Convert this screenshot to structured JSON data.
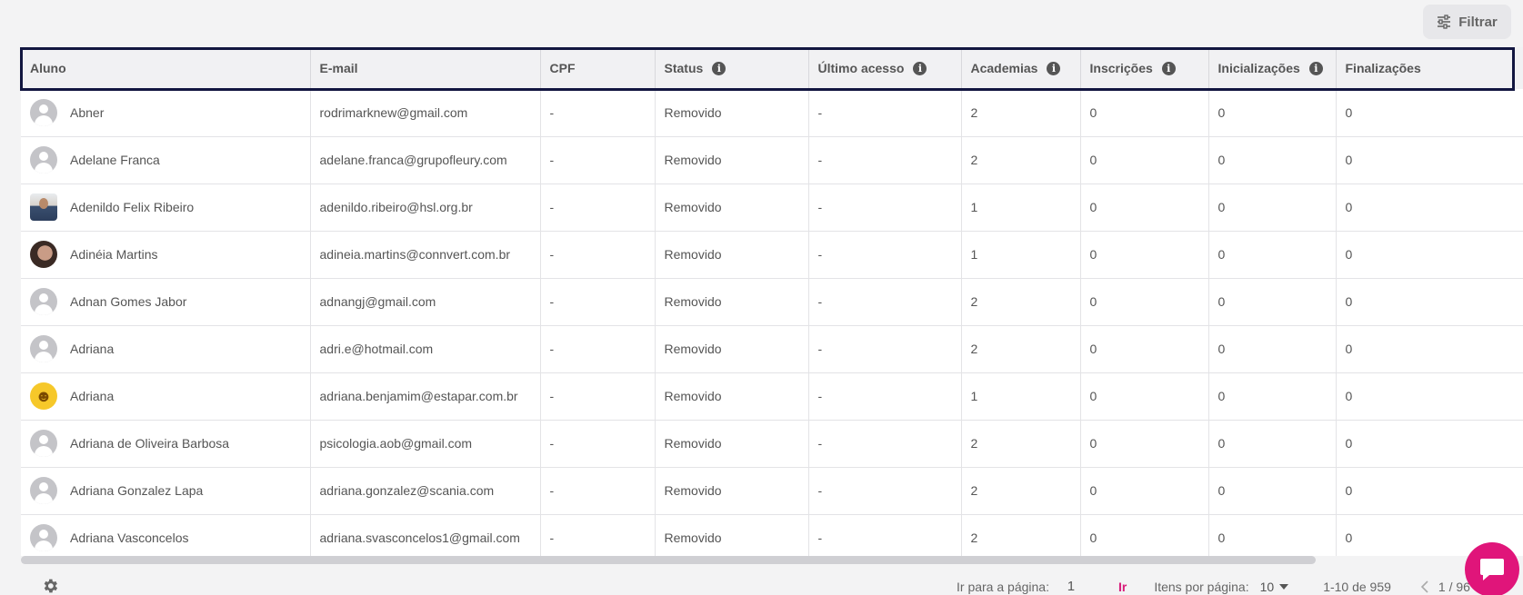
{
  "filter": {
    "label": "Filtrar",
    "icon": "sliders-icon"
  },
  "table": {
    "columns": [
      {
        "key": "aluno",
        "label": "Aluno",
        "info": false
      },
      {
        "key": "email",
        "label": "E-mail",
        "info": false
      },
      {
        "key": "cpf",
        "label": "CPF",
        "info": false
      },
      {
        "key": "status",
        "label": "Status",
        "info": true
      },
      {
        "key": "ultimo_acesso",
        "label": "Último acesso",
        "info": true
      },
      {
        "key": "academias",
        "label": "Academias",
        "info": true
      },
      {
        "key": "inscricoes",
        "label": "Inscrições",
        "info": true
      },
      {
        "key": "inicializacoes",
        "label": "Inicializações",
        "info": true
      },
      {
        "key": "finalizacoes",
        "label": "Finalizações",
        "info": false
      }
    ],
    "rows": [
      {
        "avatar": "default",
        "aluno": "Abner",
        "email": "rodrimarknew@gmail.com",
        "cpf": "-",
        "status": "Removido",
        "ultimo_acesso": "-",
        "academias": "2",
        "inscricoes": "0",
        "inicializacoes": "0",
        "finalizacoes": "0"
      },
      {
        "avatar": "default",
        "aluno": "Adelane Franca",
        "email": "adelane.franca@grupofleury.com",
        "cpf": "-",
        "status": "Removido",
        "ultimo_acesso": "-",
        "academias": "2",
        "inscricoes": "0",
        "inicializacoes": "0",
        "finalizacoes": "0"
      },
      {
        "avatar": "photo-man",
        "aluno": "Adenildo Felix Ribeiro",
        "email": "adenildo.ribeiro@hsl.org.br",
        "cpf": "-",
        "status": "Removido",
        "ultimo_acesso": "-",
        "academias": "1",
        "inscricoes": "0",
        "inicializacoes": "0",
        "finalizacoes": "0"
      },
      {
        "avatar": "photo-woman",
        "aluno": "Adinéia Martins",
        "email": "adineia.martins@connvert.com.br",
        "cpf": "-",
        "status": "Removido",
        "ultimo_acesso": "-",
        "academias": "1",
        "inscricoes": "0",
        "inicializacoes": "0",
        "finalizacoes": "0"
      },
      {
        "avatar": "default",
        "aluno": "Adnan Gomes Jabor",
        "email": "adnangj@gmail.com",
        "cpf": "-",
        "status": "Removido",
        "ultimo_acesso": "-",
        "academias": "2",
        "inscricoes": "0",
        "inicializacoes": "0",
        "finalizacoes": "0"
      },
      {
        "avatar": "default",
        "aluno": "Adriana",
        "email": "adri.e@hotmail.com",
        "cpf": "-",
        "status": "Removido",
        "ultimo_acesso": "-",
        "academias": "2",
        "inscricoes": "0",
        "inicializacoes": "0",
        "finalizacoes": "0"
      },
      {
        "avatar": "emoji",
        "aluno": "Adriana",
        "email": "adriana.benjamim@estapar.com.br",
        "cpf": "-",
        "status": "Removido",
        "ultimo_acesso": "-",
        "academias": "1",
        "inscricoes": "0",
        "inicializacoes": "0",
        "finalizacoes": "0"
      },
      {
        "avatar": "default",
        "aluno": "Adriana de Oliveira Barbosa",
        "email": "psicologia.aob@gmail.com",
        "cpf": "-",
        "status": "Removido",
        "ultimo_acesso": "-",
        "academias": "2",
        "inscricoes": "0",
        "inicializacoes": "0",
        "finalizacoes": "0"
      },
      {
        "avatar": "default",
        "aluno": "Adriana Gonzalez Lapa",
        "email": "adriana.gonzalez@scania.com",
        "cpf": "-",
        "status": "Removido",
        "ultimo_acesso": "-",
        "academias": "2",
        "inscricoes": "0",
        "inicializacoes": "0",
        "finalizacoes": "0"
      },
      {
        "avatar": "default",
        "aluno": "Adriana Vasconcelos",
        "email": "adriana.svasconcelos1@gmail.com",
        "cpf": "-",
        "status": "Removido",
        "ultimo_acesso": "-",
        "academias": "2",
        "inscricoes": "0",
        "inicializacoes": "0",
        "finalizacoes": "0"
      }
    ]
  },
  "footer": {
    "goto_label": "Ir para a página:",
    "goto_value": "1",
    "go_label": "Ir",
    "per_page_label": "Itens por página:",
    "per_page_value": "10",
    "range": "1-10 de 959",
    "pages": "1 / 96"
  },
  "colors": {
    "accent": "#d81b7a",
    "selection_outline": "#121640"
  }
}
